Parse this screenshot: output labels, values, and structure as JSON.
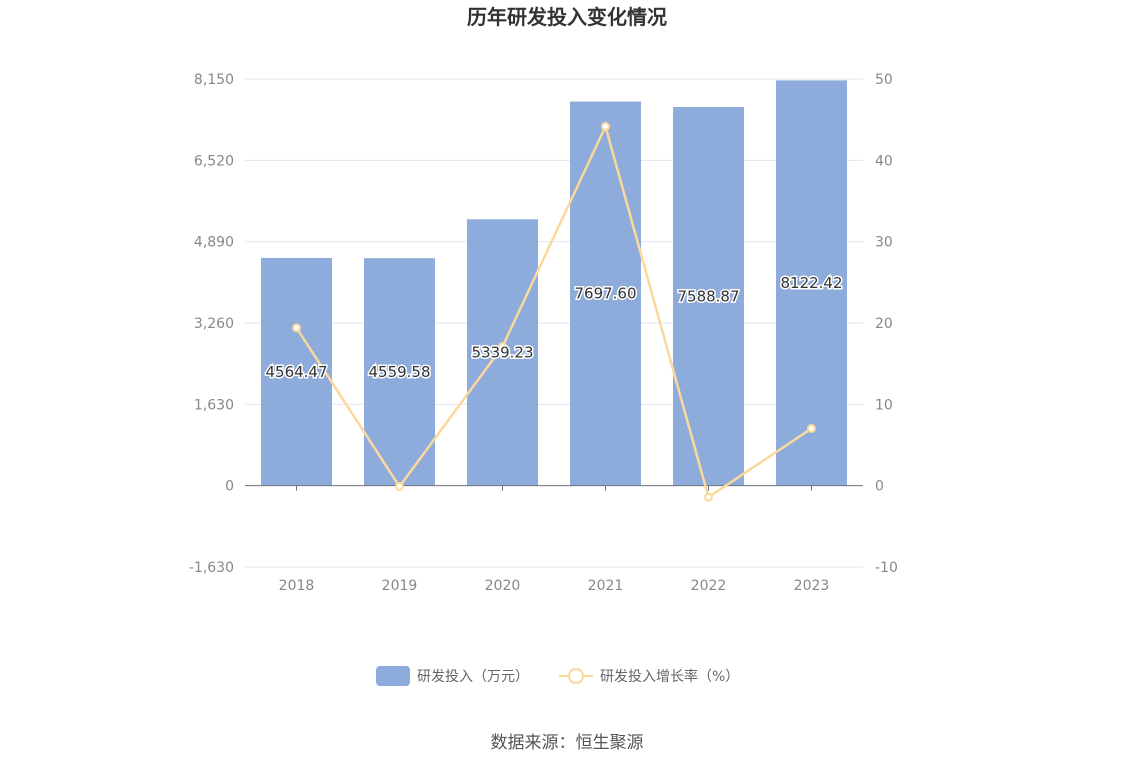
{
  "chart_data": {
    "type": "bar",
    "title": "历年研发投入变化情况",
    "categories": [
      "2018",
      "2019",
      "2020",
      "2021",
      "2022",
      "2023"
    ],
    "series": [
      {
        "name": "研发投入（万元）",
        "type": "bar",
        "axis": "left",
        "values": [
          4564.47,
          4559.58,
          5339.23,
          7697.6,
          7588.87,
          8122.42
        ],
        "value_labels": [
          "4564.47",
          "4559.58",
          "5339.23",
          "7697.60",
          "7588.87",
          "8122.42"
        ],
        "color": "#8eacdb"
      },
      {
        "name": "研发投入增长率（%）",
        "type": "line",
        "axis": "right",
        "values": [
          19.4,
          -0.11,
          17.1,
          44.17,
          -1.41,
          7.03
        ],
        "color": "#fbd89b"
      }
    ],
    "y_left": {
      "ticks": [
        -1630,
        0,
        1630,
        3260,
        4890,
        6520,
        8150
      ],
      "tick_labels": [
        "-1,630",
        "0",
        "1,630",
        "3,260",
        "4,890",
        "6,520",
        "8,150"
      ],
      "ylim": [
        -1630,
        8150
      ]
    },
    "y_right": {
      "ticks": [
        -10,
        0,
        10,
        20,
        30,
        40,
        50
      ],
      "tick_labels": [
        "-10",
        "0",
        "10",
        "20",
        "30",
        "40",
        "50"
      ],
      "ylim": [
        -10,
        50
      ]
    },
    "grid": true,
    "legend_position": "bottom-center"
  },
  "legend": {
    "bar_label": "研发投入（万元）",
    "line_label": "研发投入增长率（%）"
  },
  "source": "数据来源：恒生聚源",
  "colors": {
    "bar": "#8eacdb",
    "line": "#fbd89b",
    "grid": "#e3e6f3",
    "axis": "#6e7079"
  }
}
